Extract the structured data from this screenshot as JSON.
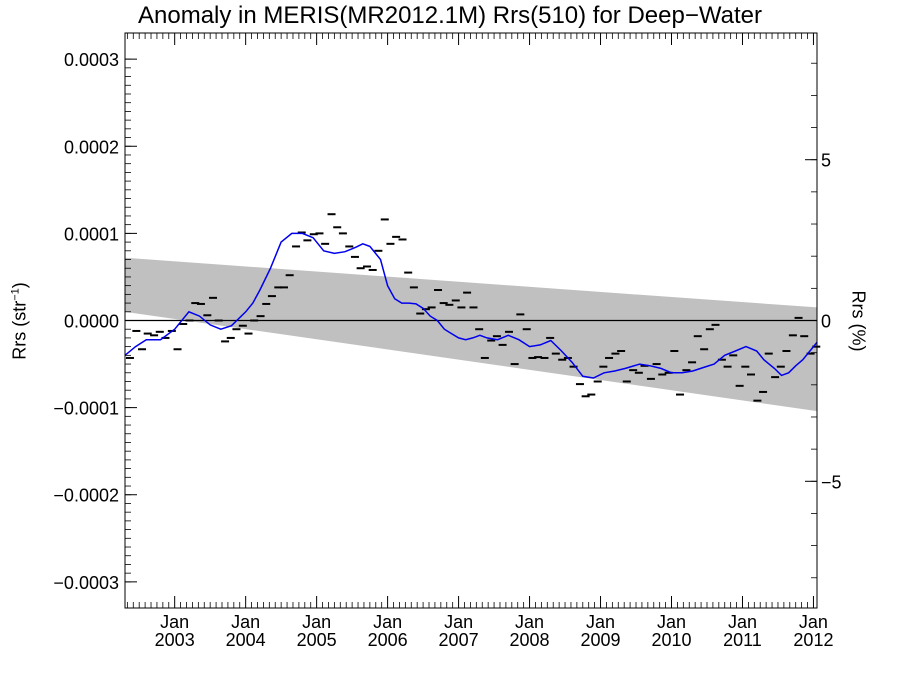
{
  "chart_data": {
    "type": "line",
    "title": "Anomaly in MERIS(MR2012.1M) Rrs(510) for Deep−Water",
    "ylabel": "Rrs (str",
    "ylabel_sup": "−1",
    "ylabel_tail": ")",
    "ylabel_right": "Rrs (%)",
    "xlim": [
      2002.3,
      2012.05
    ],
    "ylim": [
      -0.00033,
      0.00033
    ],
    "y2lim": [
      -8.94,
      8.94
    ],
    "yticks": [
      -0.0003,
      -0.0002,
      -0.0001,
      0.0,
      0.0001,
      0.0002,
      0.0003
    ],
    "ytick_labels": [
      "−0.0003",
      "−0.0002",
      "−0.0001",
      "0.0000",
      "0.0001",
      "0.0002",
      "0.0003"
    ],
    "y2ticks": [
      -5,
      0,
      5
    ],
    "y2tick_labels": [
      "−5",
      "0",
      "5"
    ],
    "xticks": [
      2003.0,
      2004.0,
      2005.0,
      2006.0,
      2007.0,
      2008.0,
      2009.0,
      2010.0,
      2011.0,
      2012.0
    ],
    "xtick_labels_top": [
      "Jan",
      "Jan",
      "Jan",
      "Jan",
      "Jan",
      "Jan",
      "Jan",
      "Jan",
      "Jan",
      "Jan"
    ],
    "xtick_labels_bottom": [
      "2003",
      "2004",
      "2005",
      "2006",
      "2007",
      "2008",
      "2009",
      "2010",
      "2011",
      "2012"
    ],
    "band": {
      "x": [
        2002.3,
        2012.05
      ],
      "upper": [
        7.2e-05,
        1.5e-05
      ],
      "lower": [
        1e-05,
        -0.000104
      ],
      "color": "#c0c0c0"
    },
    "zero_line": 0.0,
    "monthly_points": {
      "color": "#000000",
      "x": [
        2002.37,
        2002.46,
        2002.54,
        2002.62,
        2002.71,
        2002.79,
        2002.87,
        2002.96,
        2003.04,
        2003.12,
        2003.21,
        2003.29,
        2003.37,
        2003.46,
        2003.54,
        2003.62,
        2003.71,
        2003.79,
        2003.87,
        2003.96,
        2004.04,
        2004.12,
        2004.21,
        2004.29,
        2004.37,
        2004.46,
        2004.54,
        2004.62,
        2004.71,
        2004.79,
        2004.87,
        2004.96,
        2005.04,
        2005.12,
        2005.21,
        2005.29,
        2005.37,
        2005.46,
        2005.54,
        2005.62,
        2005.71,
        2005.79,
        2005.87,
        2005.96,
        2006.04,
        2006.12,
        2006.21,
        2006.29,
        2006.37,
        2006.46,
        2006.54,
        2006.62,
        2006.71,
        2006.79,
        2006.87,
        2006.96,
        2007.04,
        2007.12,
        2007.21,
        2007.29,
        2007.37,
        2007.46,
        2007.54,
        2007.62,
        2007.71,
        2007.79,
        2007.87,
        2007.96,
        2008.04,
        2008.12,
        2008.21,
        2008.29,
        2008.37,
        2008.46,
        2008.54,
        2008.62,
        2008.71,
        2008.79,
        2008.87,
        2008.96,
        2009.04,
        2009.12,
        2009.21,
        2009.29,
        2009.37,
        2009.46,
        2009.54,
        2009.62,
        2009.71,
        2009.79,
        2009.87,
        2009.96,
        2010.04,
        2010.12,
        2010.21,
        2010.29,
        2010.37,
        2010.46,
        2010.54,
        2010.62,
        2010.71,
        2010.79,
        2010.87,
        2010.96,
        2011.04,
        2011.12,
        2011.21,
        2011.29,
        2011.37,
        2011.46,
        2011.54,
        2011.62,
        2011.71,
        2011.79,
        2011.87,
        2011.96,
        2012.04
      ],
      "y": [
        -4.3e-05,
        -1.2e-05,
        -3.3e-05,
        -1.5e-05,
        -1.7e-05,
        -1.3e-05,
        -2e-05,
        -1.2e-05,
        -3.3e-05,
        -4e-06,
        0.0,
        2e-05,
        1.9e-05,
        6e-06,
        2.6e-05,
        0.0,
        -2.4e-05,
        -2e-05,
        -1e-05,
        -6e-06,
        -1.5e-05,
        0.0,
        5e-06,
        1.9e-05,
        2.8e-05,
        3.8e-05,
        3.8e-05,
        5.2e-05,
        8.5e-05,
        0.000101,
        9.2e-05,
        9.9e-05,
        0.0001,
        8.8e-05,
        0.000122,
        0.000107,
        0.0001,
        8.5e-05,
        7.3e-05,
        6e-05,
        6.2e-05,
        5.8e-05,
        8e-05,
        0.000116,
        8.8e-05,
        9.6e-05,
        9.3e-05,
        5.5e-05,
        3.8e-05,
        8e-06,
        1.3e-05,
        1.5e-05,
        3.5e-05,
        2e-05,
        1.8e-05,
        2.3e-05,
        1.5e-05,
        3.2e-05,
        1.5e-05,
        -1e-05,
        -4.3e-05,
        -2.3e-05,
        -1.8e-05,
        -2.8e-05,
        -1.3e-05,
        -5e-05,
        7e-06,
        -1e-05,
        -4.3e-05,
        -4.2e-05,
        -4.3e-05,
        -2e-05,
        -3.8e-05,
        -4.5e-05,
        -4.3e-05,
        -5.3e-05,
        -7.3e-05,
        -8.7e-05,
        -8.5e-05,
        -7e-05,
        -5.3e-05,
        -4.3e-05,
        -3.8e-05,
        -3.5e-05,
        -7e-05,
        -5.7e-05,
        -6e-05,
        -5.2e-05,
        -6.7e-05,
        -5e-05,
        -6.2e-05,
        -6e-05,
        -3.5e-05,
        -8.5e-05,
        -5.7e-05,
        -4.8e-05,
        -1.8e-05,
        -3.3e-05,
        -1e-05,
        -5e-06,
        -4.5e-05,
        -5.3e-05,
        -4e-05,
        -7.5e-05,
        -5.3e-05,
        -6.2e-05,
        -9.2e-05,
        -8.2e-05,
        -3.8e-05,
        -6.5e-05,
        -5.3e-05,
        -3.5e-05,
        -1.7e-05,
        3e-06,
        -1.8e-05,
        -3.8e-05,
        -3e-05
      ]
    },
    "smoothed_series": {
      "name": "",
      "color": "#0000ee",
      "x": [
        2002.3,
        2002.45,
        2002.6,
        2002.8,
        2003.0,
        2003.2,
        2003.35,
        2003.5,
        2003.65,
        2003.8,
        2004.0,
        2004.1,
        2004.2,
        2004.35,
        2004.5,
        2004.65,
        2004.8,
        2004.95,
        2005.1,
        2005.25,
        2005.4,
        2005.55,
        2005.65,
        2005.75,
        2005.9,
        2006.0,
        2006.1,
        2006.2,
        2006.3,
        2006.4,
        2006.5,
        2006.6,
        2006.7,
        2006.8,
        2006.9,
        2007.0,
        2007.1,
        2007.2,
        2007.3,
        2007.4,
        2007.55,
        2007.7,
        2007.85,
        2008.0,
        2008.15,
        2008.3,
        2008.45,
        2008.6,
        2008.75,
        2008.9,
        2009.05,
        2009.2,
        2009.35,
        2009.55,
        2009.7,
        2009.85,
        2010.0,
        2010.15,
        2010.3,
        2010.45,
        2010.6,
        2010.75,
        2010.9,
        2011.05,
        2011.2,
        2011.3,
        2011.45,
        2011.55,
        2011.65,
        2011.75,
        2011.85,
        2011.95,
        2012.05
      ],
      "y": [
        -4e-05,
        -3e-05,
        -2.2e-05,
        -2.2e-05,
        -1e-05,
        1e-05,
        5e-06,
        -5e-06,
        -1e-05,
        -6e-06,
        1e-05,
        2e-05,
        3.5e-05,
        6e-05,
        9e-05,
        0.0001,
        0.0001,
        9.5e-05,
        8e-05,
        7.7e-05,
        7.9e-05,
        8.4e-05,
        8.8e-05,
        8.5e-05,
        7e-05,
        4e-05,
        2.5e-05,
        2e-05,
        2e-05,
        1.9e-05,
        1.4e-05,
        5e-06,
        0.0,
        -1e-05,
        -1.5e-05,
        -2e-05,
        -2.2e-05,
        -2e-05,
        -1.7e-05,
        -2e-05,
        -2.2e-05,
        -1.7e-05,
        -2.2e-05,
        -3e-05,
        -2.8e-05,
        -2.3e-05,
        -3.5e-05,
        -4.8e-05,
        -6.4e-05,
        -6.6e-05,
        -6e-05,
        -5.8e-05,
        -5.5e-05,
        -5e-05,
        -5.2e-05,
        -5.5e-05,
        -6e-05,
        -6e-05,
        -5.8e-05,
        -5.4e-05,
        -5e-05,
        -4e-05,
        -3.5e-05,
        -3e-05,
        -3.5e-05,
        -4.5e-05,
        -5.5e-05,
        -6.3e-05,
        -6e-05,
        -5.2e-05,
        -4.5e-05,
        -3.5e-05,
        -2.5e-05
      ]
    }
  }
}
